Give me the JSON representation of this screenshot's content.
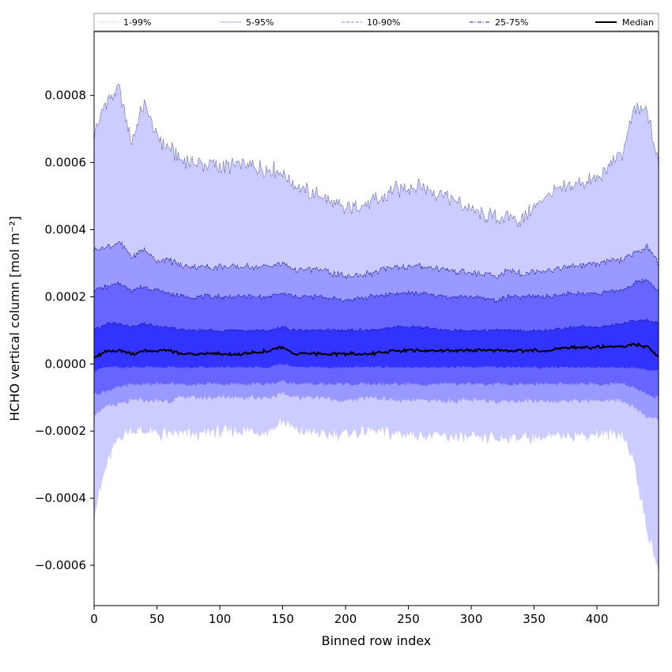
{
  "chart_data": {
    "type": "area",
    "xlabel": "Binned row index",
    "ylabel": "HCHO vertical column [mol m⁻²]",
    "xlim": [
      0,
      449
    ],
    "ylim": [
      -0.00072,
      0.00099
    ],
    "x_ticks": [
      0,
      50,
      100,
      150,
      200,
      250,
      300,
      350,
      400
    ],
    "x_tick_labels": [
      "0",
      "50",
      "100",
      "150",
      "200",
      "250",
      "300",
      "350",
      "400"
    ],
    "y_ticks": [
      -0.0006,
      -0.0004,
      -0.0002,
      0.0,
      0.0002,
      0.0004,
      0.0006,
      0.0008
    ],
    "y_tick_labels": [
      "−0.0006",
      "−0.0004",
      "−0.0002",
      "0.0000",
      "0.0002",
      "0.0004",
      "0.0006",
      "0.0008"
    ],
    "grid": false,
    "legend": {
      "placement": "top",
      "entries": [
        "1-99%",
        "5-95%",
        "10-90%",
        "25-75%",
        "Median"
      ]
    },
    "x_key": [
      0,
      10,
      20,
      30,
      40,
      50,
      60,
      70,
      80,
      100,
      120,
      140,
      150,
      160,
      180,
      200,
      220,
      240,
      260,
      280,
      300,
      320,
      330,
      340,
      360,
      380,
      400,
      420,
      430,
      440,
      449
    ],
    "series": [
      {
        "name": "1-99%",
        "color": "#ccccff",
        "upper": [
          0.00069,
          0.00078,
          0.00082,
          0.00066,
          0.00078,
          0.00068,
          0.00064,
          0.00061,
          0.0006,
          0.00059,
          0.00059,
          0.00058,
          0.00057,
          0.00053,
          0.0005,
          0.00046,
          0.00048,
          0.00052,
          0.00053,
          0.0005,
          0.00046,
          0.00043,
          0.00044,
          0.00043,
          0.0005,
          0.00053,
          0.00055,
          0.00063,
          0.00076,
          0.00075,
          0.0006
        ],
        "lower": [
          -0.00045,
          -0.0003,
          -0.00022,
          -0.0002,
          -0.0002,
          -0.00021,
          -0.00021,
          -0.00021,
          -0.00021,
          -0.0002,
          -0.0002,
          -0.0002,
          -0.00017,
          -0.0002,
          -0.00021,
          -0.00021,
          -0.0002,
          -0.00021,
          -0.00021,
          -0.00022,
          -0.00022,
          -0.00022,
          -0.00022,
          -0.00022,
          -0.00022,
          -0.00021,
          -0.00021,
          -0.00021,
          -0.0003,
          -0.0005,
          -0.00062
        ]
      },
      {
        "name": "5-95%",
        "color": "#9999ff",
        "upper": [
          0.00034,
          0.00035,
          0.00036,
          0.00032,
          0.00034,
          0.00031,
          0.00031,
          0.00029,
          0.00029,
          0.00029,
          0.00029,
          0.00029,
          0.0003,
          0.00028,
          0.00028,
          0.00026,
          0.00027,
          0.00029,
          0.00029,
          0.00028,
          0.00027,
          0.00026,
          0.00028,
          0.00027,
          0.00028,
          0.00029,
          0.0003,
          0.00031,
          0.00033,
          0.00035,
          0.0003
        ],
        "lower": [
          -0.00015,
          -0.00013,
          -0.00012,
          -0.00011,
          -0.00011,
          -0.00011,
          -0.00011,
          -0.0001,
          -0.0001,
          -0.0001,
          -0.0001,
          -0.0001,
          -9e-05,
          -0.0001,
          -0.0001,
          -0.00011,
          -0.0001,
          -0.00011,
          -0.00011,
          -0.00011,
          -0.00011,
          -0.00011,
          -0.00011,
          -0.00011,
          -0.00011,
          -0.00011,
          -0.00011,
          -0.00011,
          -0.00013,
          -0.00016,
          -0.00016
        ]
      },
      {
        "name": "10-90%",
        "color": "#6666ff",
        "upper": [
          0.00022,
          0.00023,
          0.00024,
          0.00022,
          0.00023,
          0.00022,
          0.00021,
          0.0002,
          0.0002,
          0.0002,
          0.0002,
          0.0002,
          0.00021,
          0.0002,
          0.0002,
          0.00019,
          0.0002,
          0.00021,
          0.00021,
          0.0002,
          0.0002,
          0.00019,
          0.0002,
          0.0002,
          0.0002,
          0.00021,
          0.00021,
          0.00022,
          0.00024,
          0.00025,
          0.00022
        ],
        "lower": [
          -9e-05,
          -8e-05,
          -7e-05,
          -6e-05,
          -6e-05,
          -6e-05,
          -6e-05,
          -6e-05,
          -6e-05,
          -6e-05,
          -6e-05,
          -6e-05,
          -5e-05,
          -6e-05,
          -6e-05,
          -6e-05,
          -6e-05,
          -6e-05,
          -6e-05,
          -6e-05,
          -6e-05,
          -6e-05,
          -6e-05,
          -6e-05,
          -6e-05,
          -6e-05,
          -6e-05,
          -6e-05,
          -7e-05,
          -9e-05,
          -0.0001
        ]
      },
      {
        "name": "25-75%",
        "color": "#3333ff",
        "upper": [
          0.0001,
          0.00012,
          0.00012,
          0.00011,
          0.00012,
          0.00011,
          0.00011,
          0.0001,
          0.0001,
          0.0001,
          0.0001,
          0.0001,
          0.00011,
          0.0001,
          0.0001,
          0.0001,
          0.0001,
          0.00011,
          0.00011,
          0.0001,
          0.0001,
          0.0001,
          0.0001,
          0.0001,
          0.0001,
          0.00011,
          0.00011,
          0.00012,
          0.00013,
          0.00013,
          0.00012
        ],
        "lower": [
          -2e-05,
          -1e-05,
          -1e-05,
          -1e-05,
          -1e-05,
          -1e-05,
          -1e-05,
          -1e-05,
          -1e-05,
          -1e-05,
          -1e-05,
          -1e-05,
          0.0,
          -1e-05,
          -1e-05,
          -1e-05,
          -1e-05,
          -1e-05,
          -1e-05,
          -1e-05,
          -1e-05,
          -1e-05,
          -1e-05,
          -1e-05,
          -1e-05,
          -1e-05,
          -1e-05,
          -1e-05,
          -1e-05,
          -2e-05,
          -2e-05
        ]
      },
      {
        "name": "Median",
        "color": "#000000",
        "values": [
          2e-05,
          4e-05,
          4e-05,
          3e-05,
          4e-05,
          4e-05,
          4e-05,
          3e-05,
          3e-05,
          3e-05,
          3e-05,
          4e-05,
          5e-05,
          3e-05,
          3e-05,
          3e-05,
          3e-05,
          4e-05,
          4e-05,
          4e-05,
          4e-05,
          4e-05,
          4e-05,
          4e-05,
          4e-05,
          5e-05,
          5e-05,
          5e-05,
          6e-05,
          5e-05,
          2e-05
        ]
      }
    ]
  }
}
